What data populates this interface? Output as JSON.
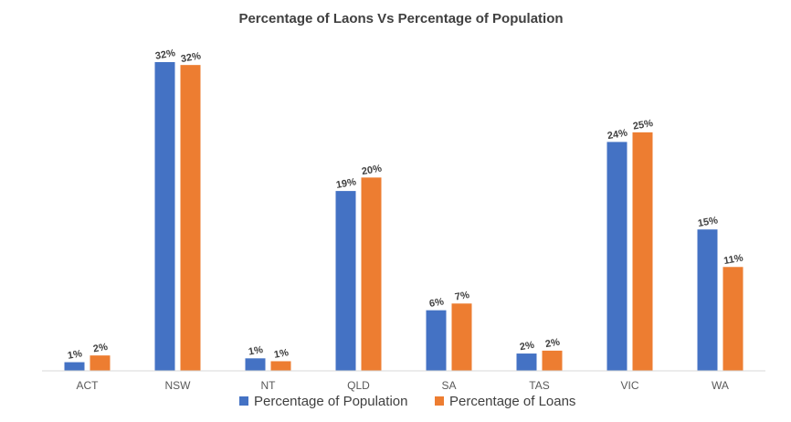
{
  "chart_data": {
    "type": "bar",
    "title": "Percentage of Laons Vs Percentage of Population",
    "xlabel": "",
    "ylabel": "",
    "ylim": [
      0,
      34
    ],
    "grid": false,
    "legend_position": "bottom",
    "categories": [
      "ACT",
      "NSW",
      "NT",
      "QLD",
      "SA",
      "TAS",
      "VIC",
      "WA"
    ],
    "series": [
      {
        "name": "Percentage of Population",
        "color": "#4472C4",
        "values": [
          0.9,
          32.1,
          1.3,
          18.7,
          6.3,
          1.8,
          23.8,
          14.7
        ],
        "labels": [
          "1%",
          "32%",
          "1%",
          "19%",
          "6%",
          "2%",
          "24%",
          "15%"
        ]
      },
      {
        "name": "Percentage of Loans",
        "color": "#ED7D31",
        "values": [
          1.6,
          31.8,
          1.0,
          20.1,
          7.0,
          2.1,
          24.8,
          10.8
        ],
        "labels": [
          "2%",
          "32%",
          "1%",
          "20%",
          "7%",
          "2%",
          "25%",
          "11%"
        ]
      }
    ]
  }
}
